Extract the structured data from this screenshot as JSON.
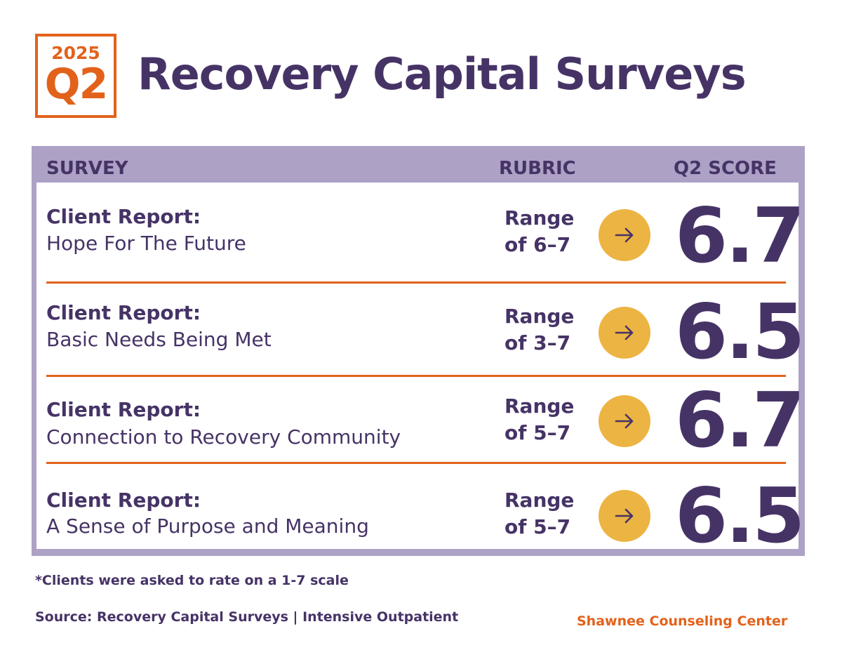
{
  "badge": {
    "year": "2025",
    "quarter": "Q2"
  },
  "title": "Recovery Capital Surveys",
  "table": {
    "headers": {
      "survey": "SURVEY",
      "rubric": "RUBRIC",
      "score": "Q2 SCORE"
    },
    "rows": [
      {
        "category": "Client Report:",
        "name": "Hope For The Future",
        "rubric_line1": "Range",
        "rubric_line2": "of 6–7",
        "score": "6.7"
      },
      {
        "category": "Client Report:",
        "name": "Basic Needs Being Met",
        "rubric_line1": "Range",
        "rubric_line2": "of 3–7",
        "score": "6.5"
      },
      {
        "category": "Client Report:",
        "name": "Connection to Recovery Community",
        "rubric_line1": "Range",
        "rubric_line2": "of 5–7",
        "score": "6.7"
      },
      {
        "category": "Client Report:",
        "name": "A Sense of Purpose and Meaning",
        "rubric_line1": "Range",
        "rubric_line2": "of 5–7",
        "score": "6.5"
      }
    ]
  },
  "footnote": "*Clients were asked to rate on a 1-7 scale",
  "source": "Source:  Recovery Capital Surveys | Intensive Outpatient",
  "organization": "Shawnee Counseling Center",
  "colors": {
    "purple": "#463366",
    "orange": "#e2621b",
    "lavender": "#ada1c6",
    "gold": "#ecb443"
  }
}
